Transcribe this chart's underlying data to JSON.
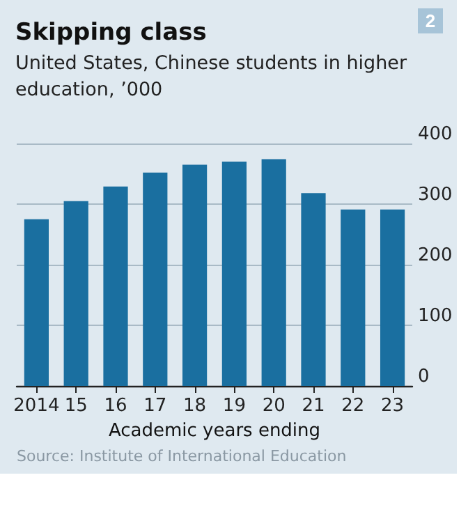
{
  "chart_data": {
    "type": "bar",
    "title": "Skipping class",
    "subtitle": "United States, Chinese students in higher education, ’000",
    "xlabel": "Academic years ending",
    "annotations": [
      "2",
      "Source: Institute of International Education"
    ],
    "categories": [
      "2014",
      "15",
      "16",
      "17",
      "18",
      "19",
      "20",
      "21",
      "22",
      "23"
    ],
    "values": [
      275,
      305,
      329,
      352,
      365,
      370,
      374,
      318,
      291,
      291
    ],
    "color": "#1a6fa0",
    "ylim": [
      0,
      400
    ],
    "yticks": [
      0,
      100,
      200,
      300,
      400
    ],
    "grid": "y"
  }
}
